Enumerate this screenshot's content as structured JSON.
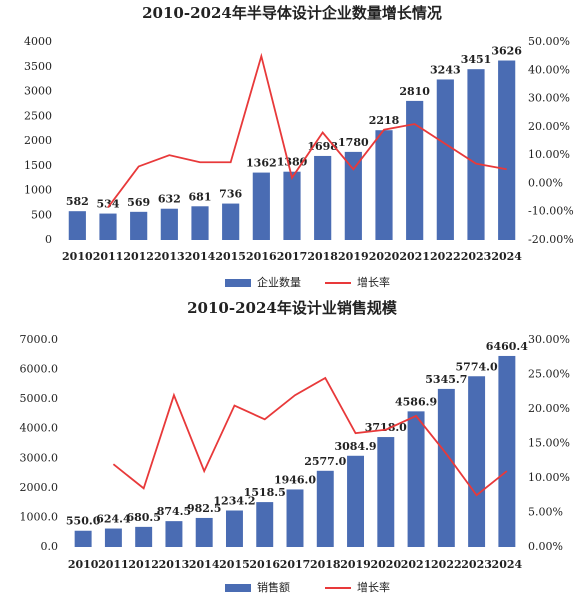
{
  "chart_data": [
    {
      "type": "bar",
      "title": "2010-2024年半导体设计企业数量增长情况",
      "categories": [
        "2010",
        "2011",
        "2012",
        "2013",
        "2014",
        "2015",
        "2016",
        "2017",
        "2018",
        "2019",
        "2020",
        "2021",
        "2022",
        "2023",
        "2024"
      ],
      "series": [
        {
          "name": "企业数量",
          "type": "bar",
          "color": "#4a6cb3",
          "values": [
            582,
            534,
            569,
            632,
            681,
            736,
            1362,
            1380,
            1698,
            1780,
            2218,
            2810,
            3243,
            3451,
            3626
          ]
        },
        {
          "name": "增长率",
          "type": "line",
          "axis": "y2",
          "color": "#e8393a",
          "values": [
            null,
            -8.5,
            6,
            10,
            7.5,
            7.5,
            45,
            2,
            18,
            5,
            19,
            21,
            14,
            7,
            5
          ]
        }
      ],
      "ylim": [
        0,
        4000
      ],
      "yticks": [
        0,
        500,
        1000,
        1500,
        2000,
        2500,
        3000,
        3500,
        4000
      ],
      "y2lim": [
        -20,
        50
      ],
      "y2ticks": [
        {
          "value": -20,
          "label": "-20.00%"
        },
        {
          "value": -10,
          "label": "-10.00%"
        },
        {
          "value": 0,
          "label": "0.00%"
        },
        {
          "value": 10,
          "label": "10.00%"
        },
        {
          "value": 20,
          "label": "20.00%"
        },
        {
          "value": 30,
          "label": "30.00%"
        },
        {
          "value": 40,
          "label": "40.00%"
        },
        {
          "value": 50,
          "label": "50.00%"
        }
      ],
      "legend": "bottom"
    },
    {
      "type": "bar",
      "title": "2010-2024年设计业销售规模",
      "categories": [
        "2010",
        "2011",
        "2012",
        "2013",
        "2014",
        "2015",
        "2016",
        "2017",
        "2018",
        "2019",
        "2020",
        "2021",
        "2022",
        "2023",
        "2024"
      ],
      "series": [
        {
          "name": "销售额",
          "type": "bar",
          "color": "#4a6cb3",
          "values": [
            550,
            624.4,
            680.5,
            874.5,
            982.5,
            1234.2,
            1518.5,
            1946,
            2577,
            3084.9,
            3718,
            4586.9,
            5345.7,
            5774,
            6460.4
          ],
          "value_labels": [
            "550.0",
            "624.4",
            "680.5",
            "874.5",
            "982.5",
            "1234.2",
            "1518.5",
            "1946.0",
            "2577.0",
            "3084.9",
            "3718.0",
            "4586.9",
            "5345.7",
            "5774.0",
            "6460.4"
          ]
        },
        {
          "name": "增长率",
          "type": "line",
          "axis": "y2",
          "color": "#e8393a",
          "values": [
            null,
            12,
            8.5,
            22,
            11,
            20.5,
            18.5,
            22,
            24.5,
            16.5,
            17,
            19,
            13.5,
            7.5,
            11
          ]
        }
      ],
      "ylim": [
        0,
        7000
      ],
      "yticks": [
        {
          "value": 0,
          "label": "0.0"
        },
        {
          "value": 1000,
          "label": "1000.0"
        },
        {
          "value": 2000,
          "label": "2000.0"
        },
        {
          "value": 3000,
          "label": "3000.0"
        },
        {
          "value": 4000,
          "label": "4000.0"
        },
        {
          "value": 5000,
          "label": "5000.0"
        },
        {
          "value": 6000,
          "label": "6000.0"
        },
        {
          "value": 7000,
          "label": "7000.0"
        }
      ],
      "y2lim": [
        0,
        30
      ],
      "y2ticks": [
        {
          "value": 0,
          "label": "0.00%"
        },
        {
          "value": 5,
          "label": "5.00%"
        },
        {
          "value": 10,
          "label": "10.00%"
        },
        {
          "value": 15,
          "label": "15.00%"
        },
        {
          "value": 20,
          "label": "20.00%"
        },
        {
          "value": 25,
          "label": "25.00%"
        },
        {
          "value": 30,
          "label": "30.00%"
        }
      ],
      "legend": "bottom"
    }
  ]
}
